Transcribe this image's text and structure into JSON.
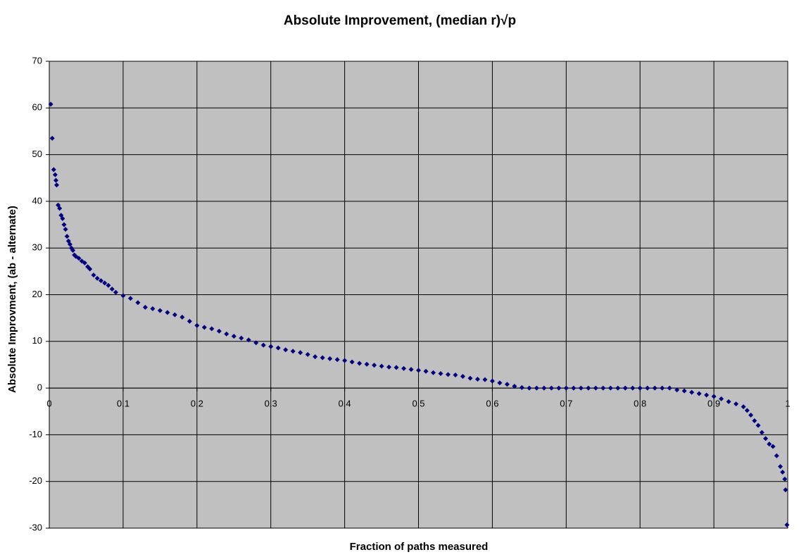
{
  "chart_data": {
    "type": "scatter",
    "title": "Absolute Improvement, (median r)√p",
    "x_label": "Fraction of paths measured",
    "y_label": "Absolute Improvment, (ab - alternate)",
    "color": "#000080",
    "background": "#c0c0c0",
    "grid": true,
    "xlim": [
      0,
      1
    ],
    "xticks": [
      0,
      0.1,
      0.2,
      0.3,
      0.4,
      0.5,
      0.6,
      0.7,
      0.8,
      0.9,
      1
    ],
    "ylim": [
      -30,
      70
    ],
    "yticks": [
      -30,
      -20,
      -10,
      0,
      10,
      20,
      30,
      40,
      50,
      60,
      70
    ],
    "x": [
      0.002,
      0.004,
      0.006,
      0.008,
      0.009,
      0.01,
      0.012,
      0.014,
      0.016,
      0.018,
      0.02,
      0.022,
      0.024,
      0.026,
      0.028,
      0.03,
      0.032,
      0.034,
      0.036,
      0.04,
      0.044,
      0.048,
      0.052,
      0.055,
      0.06,
      0.065,
      0.07,
      0.075,
      0.08,
      0.085,
      0.09,
      0.1,
      0.11,
      0.12,
      0.13,
      0.14,
      0.15,
      0.16,
      0.17,
      0.18,
      0.19,
      0.2,
      0.21,
      0.22,
      0.23,
      0.24,
      0.25,
      0.26,
      0.27,
      0.28,
      0.29,
      0.3,
      0.31,
      0.32,
      0.33,
      0.34,
      0.35,
      0.36,
      0.37,
      0.38,
      0.39,
      0.4,
      0.41,
      0.42,
      0.43,
      0.44,
      0.45,
      0.46,
      0.47,
      0.48,
      0.49,
      0.5,
      0.51,
      0.52,
      0.53,
      0.54,
      0.55,
      0.56,
      0.57,
      0.58,
      0.59,
      0.6,
      0.61,
      0.62,
      0.63,
      0.64,
      0.65,
      0.66,
      0.67,
      0.68,
      0.69,
      0.7,
      0.71,
      0.72,
      0.73,
      0.74,
      0.75,
      0.76,
      0.77,
      0.78,
      0.79,
      0.8,
      0.81,
      0.82,
      0.83,
      0.84,
      0.85,
      0.86,
      0.87,
      0.88,
      0.89,
      0.9,
      0.91,
      0.92,
      0.93,
      0.94,
      0.945,
      0.95,
      0.955,
      0.96,
      0.965,
      0.97,
      0.975,
      0.98,
      0.985,
      0.99,
      0.993,
      0.996,
      0.997,
      0.999
    ],
    "values": [
      60.8,
      53.5,
      46.8,
      45.7,
      44.5,
      43.5,
      39.2,
      38.5,
      37,
      36.3,
      35,
      34,
      32.5,
      31.5,
      30.8,
      30,
      29.5,
      28.5,
      28.2,
      27.8,
      27.2,
      26.8,
      26,
      25.5,
      24.2,
      23.5,
      23,
      22.5,
      22,
      21.2,
      20.5,
      19.8,
      19.2,
      18.3,
      17.3,
      17,
      16.6,
      16.2,
      15.7,
      15.2,
      14.3,
      13.4,
      13,
      12.7,
      12.2,
      11.6,
      11.1,
      10.7,
      10.3,
      9.7,
      9.2,
      8.9,
      8.6,
      8.2,
      7.9,
      7.6,
      7.2,
      6.7,
      6.5,
      6.3,
      6.1,
      5.9,
      5.6,
      5.3,
      5.1,
      4.9,
      4.7,
      4.5,
      4.4,
      4.2,
      4,
      3.8,
      3.6,
      3.3,
      3.1,
      2.9,
      2.8,
      2.5,
      2.1,
      1.9,
      1.8,
      1.5,
      1.1,
      0.8,
      0.4,
      0.1,
      0,
      0,
      0,
      0,
      0,
      0,
      0,
      0,
      0,
      0,
      0,
      0,
      0,
      0,
      0,
      0,
      0,
      0,
      0,
      0,
      -0.4,
      -0.6,
      -0.9,
      -1.2,
      -1.5,
      -1.8,
      -2.3,
      -2.9,
      -3.4,
      -4,
      -4.8,
      -5.8,
      -7,
      -8,
      -9.5,
      -10.8,
      -12,
      -12.5,
      -14.5,
      -16.8,
      -18,
      -19.5,
      -21.8,
      -29.3
    ]
  }
}
